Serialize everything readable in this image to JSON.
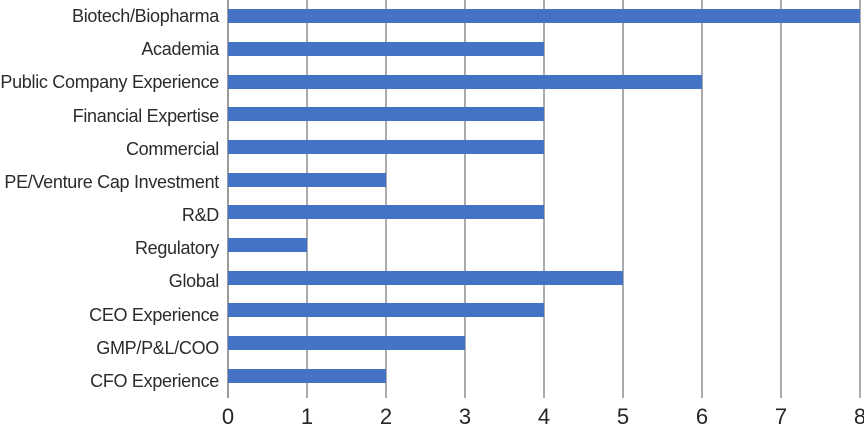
{
  "chart_data": {
    "type": "bar",
    "orientation": "horizontal",
    "title": "",
    "xlabel": "",
    "ylabel": "",
    "categories": [
      "Biotech/Biopharma",
      "Academia",
      "Public Company Experience",
      "Financial Expertise",
      "Commercial",
      "PE/Venture Cap Investment",
      "R&D",
      "Regulatory",
      "Global",
      "CEO Experience",
      "GMP/P&L/COO",
      "CFO Experience"
    ],
    "values": [
      8,
      4,
      6,
      4,
      4,
      2,
      4,
      1,
      5,
      4,
      3,
      2
    ],
    "xlim": [
      0,
      8
    ],
    "xticks": [
      "0",
      "1",
      "2",
      "3",
      "4",
      "5",
      "6",
      "7",
      "8"
    ],
    "grid": true,
    "legend": false,
    "colors": {
      "bar": "#4472C4",
      "gridline": "#ABABAB",
      "zeroline": "#9B9B9B",
      "axis_text": "#262626",
      "category_text": "#2B2B2B",
      "background": "#FFFFFF"
    }
  }
}
